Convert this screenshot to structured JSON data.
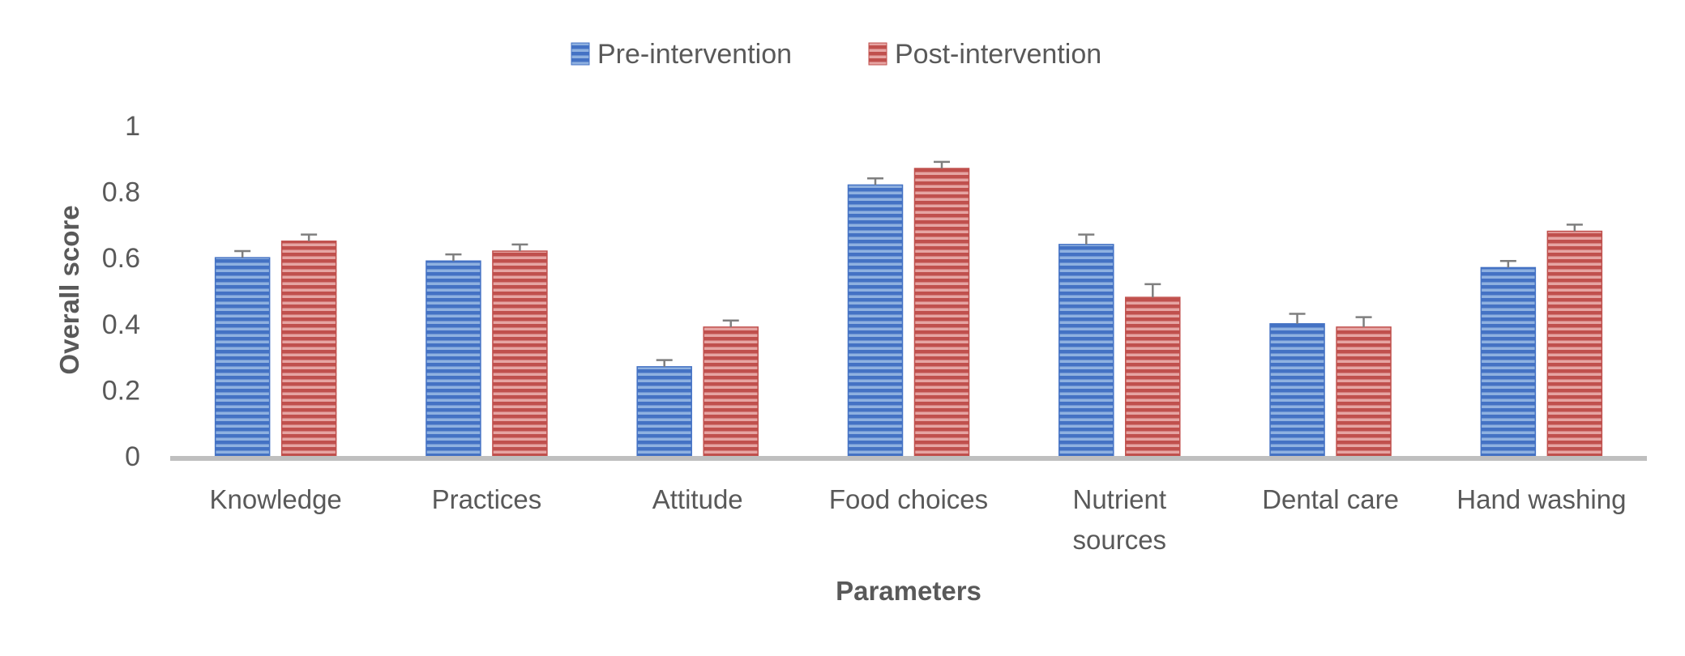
{
  "chart_data": {
    "type": "bar",
    "title": "",
    "xlabel": "Parameters",
    "ylabel": "Overall score",
    "ylim": [
      0,
      1
    ],
    "yticks": [
      "0",
      "0.2",
      "0.4",
      "0.6",
      "0.8",
      "1"
    ],
    "grid": false,
    "legend_position": "top-center",
    "categories": [
      [
        "Knowledge"
      ],
      [
        "Practices"
      ],
      [
        "Attitude"
      ],
      [
        "Food choices"
      ],
      [
        "Nutrient",
        "sources"
      ],
      [
        "Dental care"
      ],
      [
        "Hand washing"
      ]
    ],
    "series": [
      {
        "name": "Pre-intervention",
        "color": "#4472C4",
        "values": [
          0.6,
          0.59,
          0.27,
          0.82,
          0.64,
          0.4,
          0.57
        ],
        "errors": [
          0.02,
          0.02,
          0.02,
          0.02,
          0.03,
          0.03,
          0.02
        ]
      },
      {
        "name": "Post-intervention",
        "color": "#C0504D",
        "values": [
          0.65,
          0.62,
          0.39,
          0.87,
          0.48,
          0.39,
          0.68
        ],
        "errors": [
          0.02,
          0.02,
          0.02,
          0.02,
          0.04,
          0.03,
          0.02
        ]
      }
    ],
    "axis_color": "#BFBFBF",
    "error_bar_color": "#7F7F7F"
  }
}
